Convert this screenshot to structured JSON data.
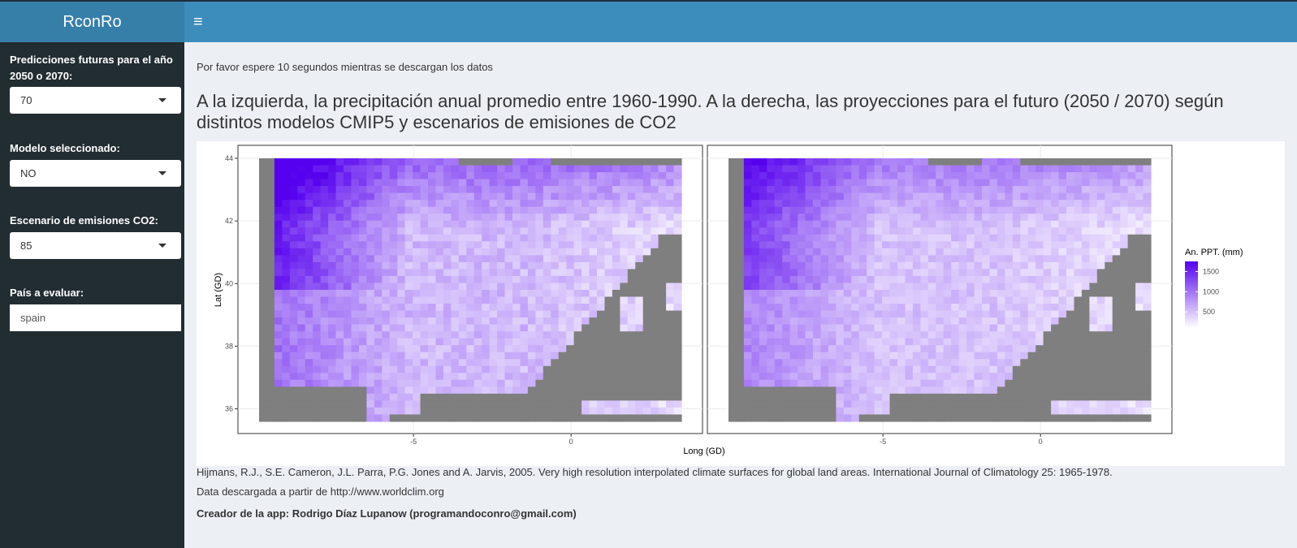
{
  "app": {
    "title": "RconRo"
  },
  "sidebar": {
    "year": {
      "label": "Predicciones futuras para el año 2050 o 2070:",
      "value": "70"
    },
    "model": {
      "label": "Modelo seleccionado:",
      "value": "NO"
    },
    "scenario": {
      "label": "Escenario de emisiones CO2:",
      "value": "85"
    },
    "country": {
      "label": "País a evaluar:",
      "value": "spain"
    }
  },
  "main": {
    "wait_note": "Por favor espere 10 segundos mientras se descargan los datos",
    "heading": "A la izquierda, la precipitación anual promedio entre 1960-1990. A la derecha, las proyecciones para el futuro (2050 / 2070) según distintos modelos CMIP5 y escenarios de emisiones de CO2",
    "citation": "Hijmans, R.J., S.E. Cameron, J.L. Parra, P.G. Jones and A. Jarvis, 2005. Very high resolution interpolated climate surfaces for global land areas. International Journal of Climatology 25: 1965-1978.",
    "data_source": "Data descargada a partir de http://www.worldclim.org",
    "creator": "Creador de la app: Rodrigo Díaz Lupanow (programandoconro@gmail.com)"
  },
  "chart_data": {
    "type": "heatmap",
    "xlabel": "Long (GD)",
    "ylabel": "Lat (GD)",
    "x_ticks": [
      -5,
      0
    ],
    "y_ticks": [
      36,
      38,
      40,
      42,
      44
    ],
    "xlim": [
      -9.9,
      3.5
    ],
    "ylim": [
      35.6,
      44
    ],
    "panels": [
      "present (1960-1990)",
      "future (2050 / 2070)"
    ],
    "legend": {
      "title": "An. PPT. (mm)",
      "ticks": [
        500,
        1000,
        1500
      ],
      "range": [
        100,
        1750
      ],
      "position": "right"
    },
    "colors": {
      "low": "#ffffff",
      "high": "#5500ee",
      "na": "#7f7f7f"
    }
  }
}
